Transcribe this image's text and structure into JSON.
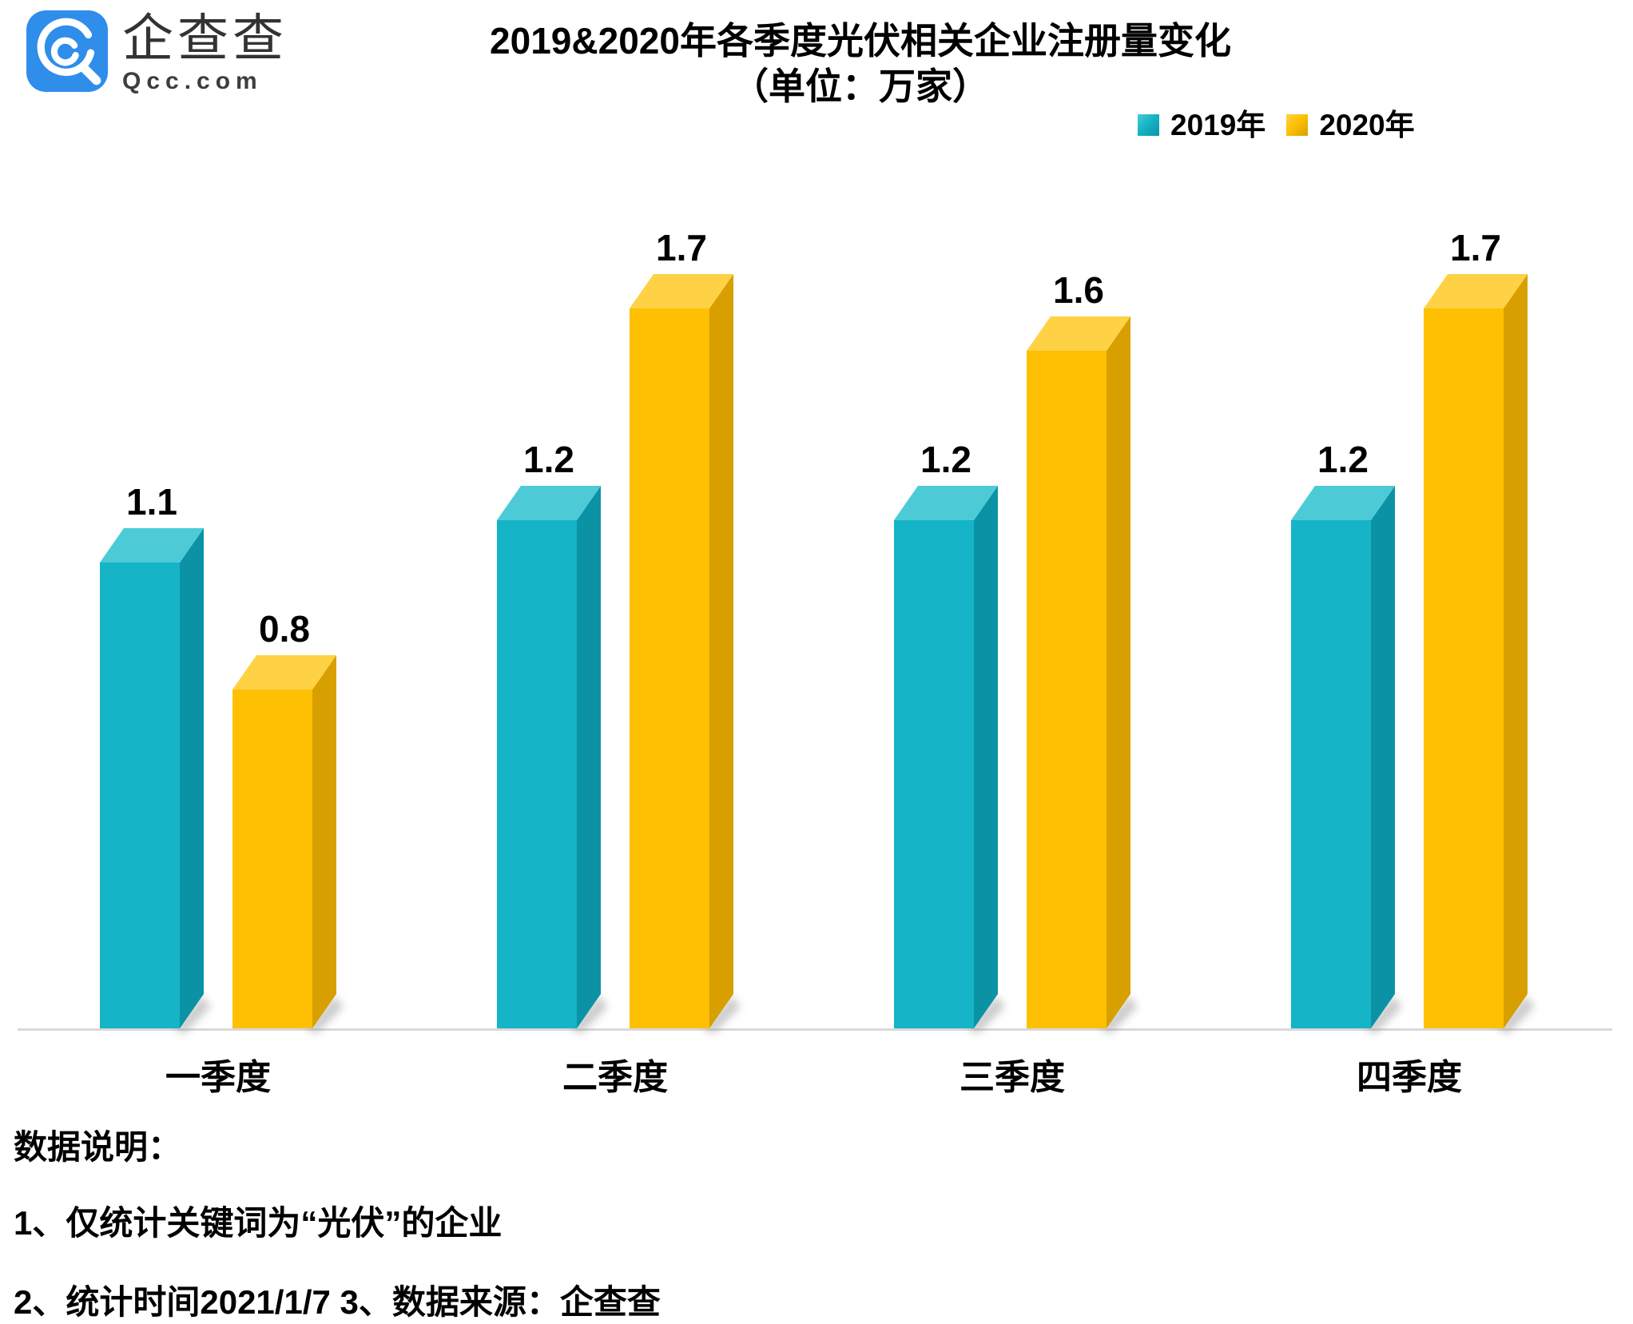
{
  "header": {
    "logo": {
      "brand_cn": "企查查",
      "brand_en": "Qcc.com",
      "brand_color": "#2E8EE9"
    },
    "title_line1": "2019&2020年各季度光伏相关企业注册量变化",
    "title_line2": "（单位：万家）"
  },
  "chart_data": {
    "type": "bar",
    "style": "3d-column",
    "title": "2019&2020年各季度光伏相关企业注册量变化",
    "subtitle": "（单位：万家）",
    "unit": "万家",
    "categories": [
      "一季度",
      "二季度",
      "三季度",
      "四季度"
    ],
    "series": [
      {
        "name": "2019年",
        "values": [
          1.1,
          1.2,
          1.2,
          1.2
        ],
        "color": "#15B4C6",
        "color_top": "#4CCBD7",
        "color_side": "#0B93A5"
      },
      {
        "name": "2020年",
        "values": [
          0.8,
          1.7,
          1.6,
          1.7
        ],
        "color": "#FFC003",
        "color_top": "#FFD245",
        "color_side": "#D7A000"
      }
    ],
    "value_labels": true,
    "ylim": [
      0,
      2
    ],
    "grid": false,
    "legend_position": "top-right",
    "axis_line_color": "#D9D9D9"
  },
  "footer": {
    "heading": "数据说明：",
    "note1": "1、仅统计关键词为“光伏”的企业",
    "note2": "2、统计时间2021/1/7  3、数据来源：企查查"
  }
}
